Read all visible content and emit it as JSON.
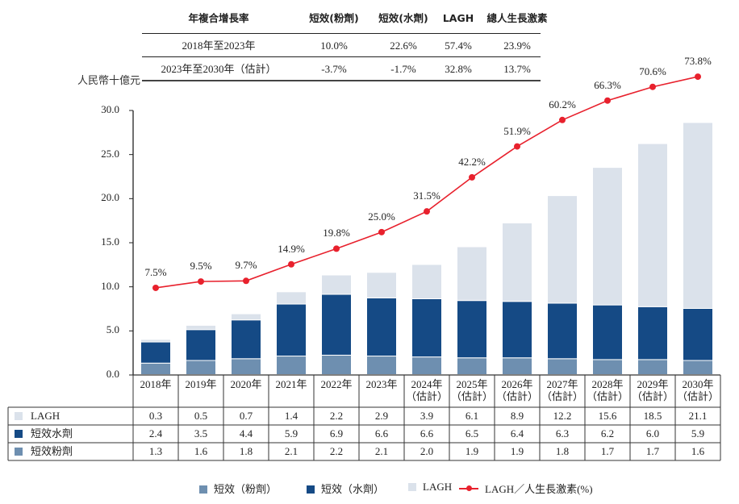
{
  "cagr_table": {
    "headers": [
      "年複合增長率",
      "短效(粉劑)",
      "短效(水劑)",
      "LAGH",
      "總人生長激素"
    ],
    "rows": [
      {
        "period": "2018年至2023年",
        "values": [
          "10.0%",
          "22.6%",
          "57.4%",
          "23.9%"
        ]
      },
      {
        "period": "2023年至2030年（估計）",
        "values": [
          "-3.7%",
          "-1.7%",
          "32.8%",
          "13.7%"
        ]
      }
    ]
  },
  "unit_label": "人民幣十億元",
  "colors": {
    "powder": "#6e8fb0",
    "liquid": "#154a85",
    "lagh": "#dbe2eb",
    "line": "#e8212d"
  },
  "chart_data": {
    "type": "bar",
    "stacked": true,
    "title": "",
    "ylabel": "人民幣十億元",
    "xlabel": "",
    "ylim": [
      0,
      30
    ],
    "yticks": [
      "0.0",
      "5.0",
      "10.0",
      "15.0",
      "20.0",
      "25.0",
      "30.0"
    ],
    "ytick_values": [
      0,
      5,
      10,
      15,
      20,
      25,
      30
    ],
    "categories": [
      {
        "year": "2018年",
        "note": ""
      },
      {
        "year": "2019年",
        "note": ""
      },
      {
        "year": "2020年",
        "note": ""
      },
      {
        "year": "2021年",
        "note": ""
      },
      {
        "year": "2022年",
        "note": ""
      },
      {
        "year": "2023年",
        "note": ""
      },
      {
        "year": "2024年",
        "note": "（估計）"
      },
      {
        "year": "2025年",
        "note": "（估計）"
      },
      {
        "year": "2026年",
        "note": "（估計）"
      },
      {
        "year": "2027年",
        "note": "（估計）"
      },
      {
        "year": "2028年",
        "note": "（估計）"
      },
      {
        "year": "2029年",
        "note": "（估計）"
      },
      {
        "year": "2030年",
        "note": "（估計）"
      }
    ],
    "series": [
      {
        "name": "短效（粉劑）",
        "table_label": "短效粉劑",
        "values": [
          1.3,
          1.6,
          1.8,
          2.1,
          2.2,
          2.1,
          2.0,
          1.9,
          1.9,
          1.8,
          1.7,
          1.7,
          1.6
        ]
      },
      {
        "name": "短效（水劑）",
        "table_label": "短效水劑",
        "values": [
          2.4,
          3.5,
          4.4,
          5.9,
          6.9,
          6.6,
          6.6,
          6.5,
          6.4,
          6.3,
          6.2,
          6.0,
          5.9
        ]
      },
      {
        "name": "LAGH",
        "table_label": "LAGH",
        "values": [
          0.3,
          0.5,
          0.7,
          1.4,
          2.2,
          2.9,
          3.9,
          6.1,
          8.9,
          12.2,
          15.6,
          18.5,
          21.1
        ]
      }
    ],
    "line_series": {
      "name": "LAGH／人生長激素(%)",
      "type": "line",
      "values": [
        7.5,
        9.5,
        9.7,
        14.9,
        19.8,
        25.0,
        31.5,
        42.2,
        51.9,
        60.2,
        66.3,
        70.6,
        73.8
      ],
      "labels": [
        "7.5%",
        "9.5%",
        "9.7%",
        "14.9%",
        "19.8%",
        "25.0%",
        "31.5%",
        "42.2%",
        "51.9%",
        "60.2%",
        "66.3%",
        "70.6%",
        "73.8%"
      ]
    },
    "table_rows_order": [
      "LAGH",
      "短效水劑",
      "短效粉劑"
    ],
    "table_values": {
      "LAGH": [
        "0.3",
        "0.5",
        "0.7",
        "1.4",
        "2.2",
        "2.9",
        "3.9",
        "6.1",
        "8.9",
        "12.2",
        "15.6",
        "18.5",
        "21.1"
      ],
      "短效水劑": [
        "2.4",
        "3.5",
        "4.4",
        "5.9",
        "6.9",
        "6.6",
        "6.6",
        "6.5",
        "6.4",
        "6.3",
        "6.2",
        "6.0",
        "5.9"
      ],
      "短效粉劑": [
        "1.3",
        "1.6",
        "1.8",
        "2.1",
        "2.2",
        "2.1",
        "2.0",
        "1.9",
        "1.9",
        "1.8",
        "1.7",
        "1.7",
        "1.6"
      ]
    },
    "legend": {
      "position": "bottom",
      "items": [
        "短效（粉劑）",
        "短效（水劑）",
        "LAGH",
        "LAGH／人生長激素(%)"
      ]
    },
    "grid": false
  }
}
